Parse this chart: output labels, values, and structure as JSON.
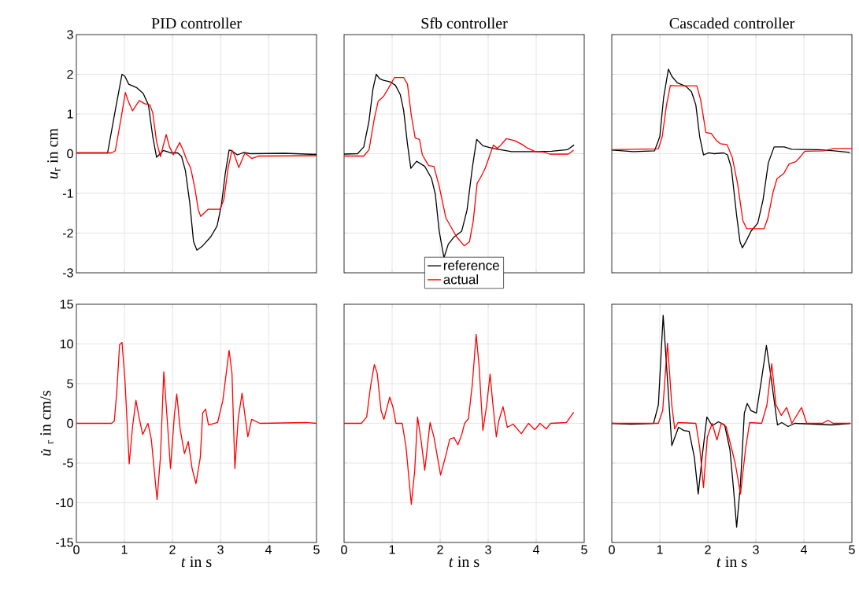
{
  "chart_data": [
    {
      "type": "line",
      "title": "PID controller",
      "ylabel": "*u*$_{r}$ in cm",
      "xlim": [
        0,
        5
      ],
      "ylim": [
        -3,
        3
      ],
      "xticks": [
        0,
        1,
        2,
        3,
        4,
        5
      ],
      "yticks": [
        -3,
        -2,
        -1,
        0,
        1,
        2,
        3
      ],
      "grid": true,
      "tick_labels": "y",
      "series": [
        {
          "color": "#000000",
          "x": [
            0,
            0.65,
            0.81,
            0.95,
            1.01,
            1.09,
            1.26,
            1.39,
            1.5,
            1.59,
            1.67,
            1.72,
            1.81,
            1.97,
            2.11,
            2.19,
            2.27,
            2.36,
            2.44,
            2.51,
            2.63,
            2.8,
            2.93,
            3.02,
            3.1,
            3.18,
            3.24,
            3.35,
            3.49,
            3.62,
            4.34,
            5
          ],
          "values": [
            0.02,
            0.02,
            1.09,
            2.0,
            1.95,
            1.75,
            1.66,
            1.52,
            1.23,
            0.43,
            -0.09,
            -0.03,
            0.08,
            0.02,
            0.02,
            -0.07,
            -0.43,
            -1.23,
            -2.22,
            -2.43,
            -2.32,
            -2.09,
            -1.82,
            -1.29,
            -0.5,
            0.09,
            0.07,
            -0.03,
            0.03,
            0.0,
            0.01,
            -0.02
          ]
        },
        {
          "color": "#ff0000",
          "x": [
            0,
            0.73,
            0.81,
            0.93,
            1.02,
            1.09,
            1.17,
            1.31,
            1.42,
            1.53,
            1.59,
            1.67,
            1.75,
            1.87,
            1.94,
            2.02,
            2.15,
            2.22,
            2.3,
            2.38,
            2.47,
            2.54,
            2.59,
            2.74,
            2.99,
            3.07,
            3.16,
            3.24,
            3.29,
            3.38,
            3.51,
            3.65,
            3.79,
            5
          ],
          "values": [
            0.02,
            0.02,
            0.07,
            0.89,
            1.54,
            1.29,
            1.08,
            1.34,
            1.26,
            1.23,
            1.03,
            0.3,
            -0.07,
            0.48,
            0.17,
            -0.03,
            0.28,
            0.1,
            -0.17,
            -0.36,
            -0.89,
            -1.42,
            -1.58,
            -1.4,
            -1.4,
            -1.16,
            -0.36,
            0.09,
            -0.03,
            -0.35,
            0.02,
            -0.12,
            -0.06,
            -0.05
          ]
        }
      ]
    },
    {
      "type": "line",
      "title": "Sfb controller",
      "xlim": [
        0,
        5
      ],
      "ylim": [
        -3,
        3
      ],
      "xticks": [
        0,
        1,
        2,
        3,
        4,
        5
      ],
      "yticks": [
        -3,
        -2,
        -1,
        0,
        1,
        2,
        3
      ],
      "grid": true,
      "tick_labels": false,
      "legend": "bottom",
      "series": [
        {
          "name": "reference",
          "color": "#000000",
          "x": [
            0,
            0.28,
            0.41,
            0.52,
            0.6,
            0.67,
            0.74,
            0.82,
            0.96,
            1.07,
            1.17,
            1.24,
            1.32,
            1.39,
            1.51,
            1.68,
            1.82,
            1.9,
            1.98,
            2.08,
            2.17,
            2.28,
            2.45,
            2.56,
            2.67,
            2.76,
            2.89,
            3.11,
            3.49,
            4.04,
            4.32,
            4.65,
            4.79
          ],
          "values": [
            -0.01,
            0.0,
            0.17,
            0.83,
            1.62,
            2.0,
            1.89,
            1.85,
            1.81,
            1.72,
            1.49,
            1.09,
            0.24,
            -0.37,
            -0.19,
            -0.32,
            -0.62,
            -1.02,
            -1.95,
            -2.62,
            -2.28,
            -2.11,
            -1.95,
            -1.42,
            -0.36,
            0.36,
            0.2,
            0.13,
            0.05,
            0.05,
            0.06,
            0.1,
            0.22
          ]
        },
        {
          "name": "actual",
          "color": "#ff0000",
          "x": [
            0,
            0.41,
            0.52,
            0.63,
            0.71,
            0.82,
            0.91,
            1.05,
            1.24,
            1.32,
            1.4,
            1.48,
            1.57,
            1.63,
            1.76,
            1.87,
            1.98,
            2.12,
            2.34,
            2.5,
            2.61,
            2.69,
            2.77,
            2.86,
            2.94,
            3.11,
            3.19,
            3.25,
            3.38,
            3.55,
            3.71,
            3.82,
            3.98,
            4.15,
            4.28,
            4.67,
            4.78
          ],
          "values": [
            -0.06,
            -0.06,
            0.1,
            0.89,
            1.32,
            1.44,
            1.62,
            1.92,
            1.92,
            1.75,
            0.96,
            0.4,
            0.36,
            -0.03,
            -0.3,
            -0.32,
            -0.82,
            -1.62,
            -2.09,
            -2.32,
            -2.22,
            -1.69,
            -0.75,
            -0.56,
            -0.36,
            0.22,
            0.14,
            0.2,
            0.38,
            0.33,
            0.23,
            0.14,
            0.05,
            0.04,
            -0.01,
            -0.01,
            0.09
          ]
        }
      ]
    },
    {
      "type": "line",
      "title": "Cascaded controller",
      "xlim": [
        0,
        5
      ],
      "ylim": [
        -3,
        3
      ],
      "xticks": [
        0,
        1,
        2,
        3,
        4,
        5
      ],
      "yticks": [
        -3,
        -2,
        -1,
        0,
        1,
        2,
        3
      ],
      "grid": true,
      "tick_labels": false,
      "series": [
        {
          "color": "#000000",
          "x": [
            0,
            0.45,
            0.89,
            1.0,
            1.08,
            1.18,
            1.25,
            1.36,
            1.55,
            1.66,
            1.75,
            1.83,
            1.91,
            2.02,
            2.13,
            2.33,
            2.41,
            2.49,
            2.6,
            2.67,
            2.72,
            2.79,
            2.9,
            3.04,
            3.15,
            3.26,
            3.38,
            3.59,
            3.75,
            4.3,
            4.63,
            4.96
          ],
          "values": [
            0.09,
            0.05,
            0.07,
            0.43,
            1.42,
            2.13,
            1.95,
            1.79,
            1.69,
            1.56,
            1.23,
            0.43,
            -0.03,
            0.02,
            0.0,
            0.02,
            -0.03,
            -0.36,
            -1.56,
            -2.22,
            -2.37,
            -2.22,
            -1.95,
            -1.75,
            -1.16,
            -0.23,
            0.17,
            0.17,
            0.11,
            0.1,
            0.07,
            0.03
          ]
        },
        {
          "color": "#ff0000",
          "x": [
            0,
            0.97,
            1.05,
            1.14,
            1.22,
            1.33,
            1.77,
            1.85,
            1.96,
            2.07,
            2.18,
            2.26,
            2.4,
            2.51,
            2.62,
            2.73,
            2.81,
            3.17,
            3.25,
            3.36,
            3.44,
            3.58,
            3.69,
            3.83,
            3.91,
            4.02,
            4.41,
            4.63,
            5
          ],
          "values": [
            0.1,
            0.12,
            0.43,
            1.23,
            1.72,
            1.71,
            1.71,
            1.36,
            0.53,
            0.51,
            0.33,
            0.25,
            0.23,
            -0.1,
            -0.76,
            -1.69,
            -1.89,
            -1.89,
            -1.62,
            -0.96,
            -0.63,
            -0.5,
            -0.26,
            -0.2,
            -0.1,
            0.06,
            0.07,
            0.13,
            0.13
          ]
        }
      ]
    },
    {
      "type": "line",
      "xlabel": "*t* in s",
      "ylabel": "*u̇*$_{r}$ in cm/s",
      "xlim": [
        0,
        5
      ],
      "ylim": [
        -15,
        15
      ],
      "xticks": [
        0,
        1,
        2,
        3,
        4,
        5
      ],
      "yticks": [
        -15,
        -10,
        -5,
        0,
        5,
        10,
        15
      ],
      "grid": true,
      "series": [
        {
          "color": "#ff0000",
          "x": [
            0,
            0.73,
            0.79,
            0.84,
            0.9,
            0.95,
            1.01,
            1.1,
            1.17,
            1.24,
            1.31,
            1.38,
            1.49,
            1.56,
            1.68,
            1.75,
            1.82,
            1.89,
            1.96,
            2.04,
            2.09,
            2.16,
            2.25,
            2.33,
            2.41,
            2.49,
            2.58,
            2.63,
            2.69,
            2.75,
            2.94,
            3.05,
            3.18,
            3.24,
            3.3,
            3.37,
            3.45,
            3.51,
            3.57,
            3.65,
            3.82,
            4.78,
            5
          ],
          "values": [
            0,
            0,
            0.3,
            3.9,
            9.9,
            10.2,
            5.6,
            -5.1,
            -0.4,
            2.9,
            0.6,
            -1.4,
            0.0,
            -2.0,
            -9.6,
            -4.3,
            6.5,
            0.6,
            -5.7,
            1.0,
            3.7,
            -0.7,
            -3.8,
            -2.3,
            -5.7,
            -7.6,
            -4.3,
            1.3,
            1.8,
            -0.2,
            0.1,
            2.9,
            9.2,
            6.3,
            -5.7,
            0.6,
            3.8,
            1.0,
            -1.7,
            0.5,
            0,
            0.1,
            0
          ]
        }
      ]
    },
    {
      "type": "line",
      "xlabel": "*t* in s",
      "xlim": [
        0,
        5
      ],
      "ylim": [
        -15,
        15
      ],
      "xticks": [
        0,
        1,
        2,
        3,
        4,
        5
      ],
      "yticks": [
        -15,
        -10,
        -5,
        0,
        5,
        10,
        15
      ],
      "grid": true,
      "tick_labels": "x",
      "series": [
        {
          "color": "#ff0000",
          "x": [
            0,
            0.36,
            0.47,
            0.55,
            0.63,
            0.69,
            0.77,
            0.83,
            0.95,
            1.02,
            1.08,
            1.21,
            1.29,
            1.4,
            1.47,
            1.53,
            1.6,
            1.68,
            1.79,
            1.87,
            2.01,
            2.12,
            2.2,
            2.29,
            2.37,
            2.45,
            2.51,
            2.59,
            2.67,
            2.75,
            2.81,
            2.89,
            2.97,
            3.04,
            3.1,
            3.17,
            3.22,
            3.31,
            3.4,
            3.52,
            3.69,
            3.84,
            3.97,
            4.08,
            4.21,
            4.3,
            4.63,
            4.78
          ],
          "values": [
            0,
            0,
            0.8,
            4.6,
            7.4,
            6.3,
            1.6,
            0.5,
            3.3,
            2.0,
            0,
            0,
            -3.0,
            -10.2,
            -6.0,
            0.8,
            -2.0,
            -5.9,
            0.1,
            -1.7,
            -6.5,
            -4.0,
            -2.0,
            -1.8,
            -2.7,
            -1.4,
            0,
            0.6,
            4.9,
            11.2,
            7.3,
            -0.9,
            2.3,
            6.2,
            2.3,
            -1.7,
            0.3,
            2.1,
            -0.5,
            -0.1,
            -1.3,
            0,
            -0.8,
            0,
            -0.7,
            0,
            0.1,
            1.4
          ]
        }
      ]
    },
    {
      "type": "line",
      "xlabel": "*t* in s",
      "xlim": [
        0,
        5
      ],
      "ylim": [
        -15,
        15
      ],
      "xticks": [
        0,
        1,
        2,
        3,
        4,
        5
      ],
      "yticks": [
        -15,
        -10,
        -5,
        0,
        5,
        10,
        15
      ],
      "grid": true,
      "tick_labels": "x",
      "series": [
        {
          "color": "#000000",
          "x": [
            0,
            0.4,
            0.87,
            0.97,
            1.07,
            1.14,
            1.25,
            1.39,
            1.5,
            1.61,
            1.72,
            1.8,
            1.88,
            1.98,
            2.09,
            2.22,
            2.35,
            2.46,
            2.54,
            2.6,
            2.68,
            2.76,
            2.82,
            2.9,
            3.01,
            3.12,
            3.22,
            3.32,
            3.45,
            3.54,
            3.67,
            3.81,
            4.58,
            4.97
          ],
          "values": [
            0,
            -0.1,
            0,
            2.3,
            13.6,
            7.3,
            -2.8,
            -0.5,
            -0.9,
            -1.0,
            -4.3,
            -8.9,
            -4.3,
            0.8,
            -0.3,
            0.2,
            -0.2,
            -3.3,
            -8.6,
            -13.1,
            -7.6,
            1.3,
            2.5,
            1.6,
            1.3,
            5.6,
            9.8,
            5.6,
            -0.2,
            0.1,
            -0.4,
            0,
            -0.2,
            0
          ]
        },
        {
          "color": "#ff0000",
          "x": [
            0,
            0.97,
            1.06,
            1.16,
            1.25,
            1.31,
            1.38,
            1.75,
            1.83,
            1.91,
            1.99,
            2.09,
            2.19,
            2.28,
            2.38,
            2.57,
            2.68,
            2.79,
            2.87,
            3.12,
            3.23,
            3.33,
            3.42,
            3.53,
            3.64,
            3.75,
            3.95,
            4.06,
            4.39,
            4.5,
            4.61,
            4.97
          ],
          "values": [
            0,
            0,
            1.6,
            10.1,
            2.3,
            -0.7,
            0.1,
            0,
            -3.0,
            -8.1,
            -1.7,
            0,
            -2.1,
            0,
            -0.4,
            -5.0,
            -8.9,
            -3.0,
            0.1,
            0,
            2.3,
            7.5,
            2.3,
            1.0,
            2.0,
            0,
            2.0,
            0,
            0,
            0.4,
            0,
            0
          ]
        }
      ]
    }
  ]
}
